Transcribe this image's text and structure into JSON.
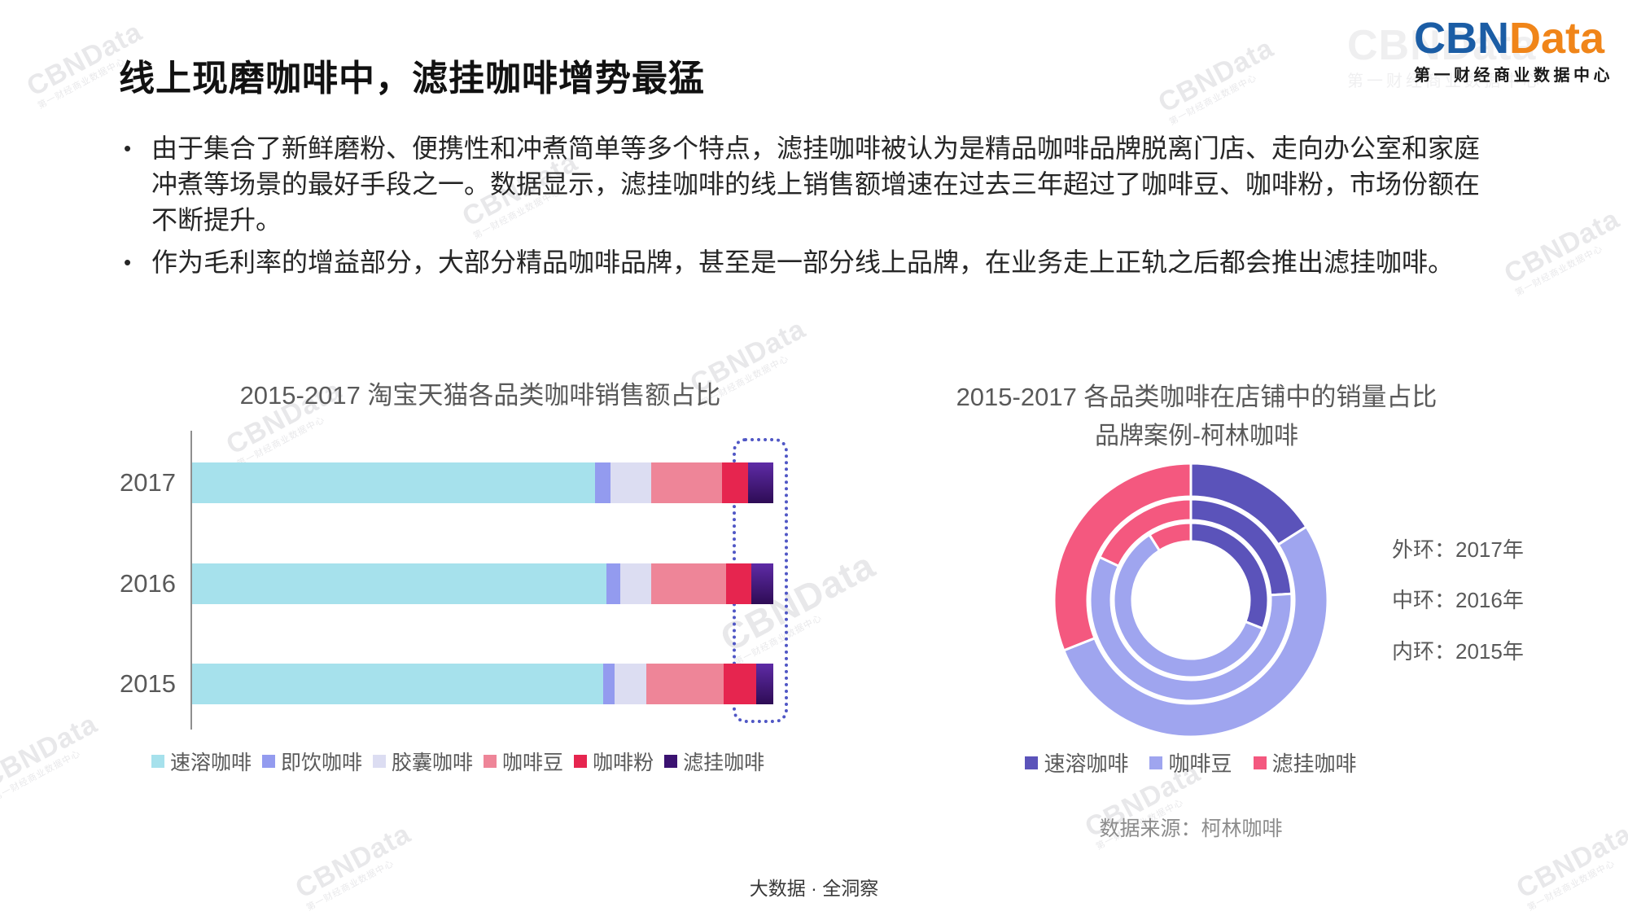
{
  "header": {
    "title": "线上现磨咖啡中，滤挂咖啡增势最猛",
    "logo": {
      "cbn": "CBN",
      "data": "Data",
      "subtitle": "第一财经商业数据中心"
    }
  },
  "bullet_char": "•",
  "bullets": [
    "由于集合了新鲜磨粉、便携性和冲煮简单等多个特点，滤挂咖啡被认为是精品咖啡品牌脱离门店、走向办公室和家庭冲煮等场景的最好手段之一。数据显示，滤挂咖啡的线上销售额增速在过去三年超过了咖啡豆、咖啡粉，市场份额在不断提升。",
    "作为毛利率的增益部分，大部分精品咖啡品牌，甚至是一部分线上品牌，在业务走上正轨之后都会推出滤挂咖啡。"
  ],
  "watermark": {
    "text": "CBNData",
    "subtext": "第一财经商业数据中心"
  },
  "footer": "大数据 · 全洞察",
  "chart_data": [
    {
      "type": "bar",
      "subtype": "horizontal-stacked-100pct",
      "title": "2015-2017 淘宝天猫各品类咖啡销售额占比",
      "unit": "%",
      "xlim": [
        0,
        100
      ],
      "categories": [
        "2017",
        "2016",
        "2015"
      ],
      "series": [
        {
          "name": "速溶咖啡",
          "color": "#a6e1ec",
          "values": [
            69.3,
            71.3,
            70.7
          ]
        },
        {
          "name": "即饮咖啡",
          "color": "#939bef",
          "values": [
            2.7,
            2.4,
            2.0
          ]
        },
        {
          "name": "胶囊咖啡",
          "color": "#dcddf2",
          "values": [
            7.0,
            5.3,
            5.5
          ]
        },
        {
          "name": "咖啡豆",
          "color": "#ee8598",
          "values": [
            12.2,
            12.9,
            13.3
          ]
        },
        {
          "name": "咖啡粉",
          "color": "#e6254f",
          "values": [
            4.5,
            4.3,
            5.5
          ]
        },
        {
          "name": "滤挂咖啡",
          "color": "#3b1271",
          "gradient": [
            "#5e2ba6",
            "#2e0c55"
          ],
          "values": [
            4.3,
            3.8,
            3.0
          ]
        }
      ],
      "annotation": "dotted highlight box around 滤挂咖啡 segments",
      "legend_position": "bottom"
    },
    {
      "type": "pie",
      "subtype": "nested-donut",
      "title": "2015-2017 各品类咖啡在店铺中的销量占比",
      "subtitle": "品牌案例-柯林咖啡",
      "unit": "%",
      "segments": [
        {
          "name": "速溶咖啡",
          "color": "#5b53ba"
        },
        {
          "name": "咖啡豆",
          "color": "#9fa5ef"
        },
        {
          "name": "滤挂咖啡",
          "color": "#f4587f"
        }
      ],
      "rings": [
        {
          "position": "outer",
          "label": "外环：2017年",
          "year": "2017",
          "values": [
            16,
            53,
            31
          ]
        },
        {
          "position": "middle",
          "label": "中环：2016年",
          "year": "2016",
          "values": [
            24,
            58,
            18
          ]
        },
        {
          "position": "inner",
          "label": "内环：2015年",
          "year": "2015",
          "values": [
            31,
            60,
            9
          ]
        }
      ],
      "source": "数据来源：柯林咖啡",
      "legend_position": "bottom"
    }
  ]
}
